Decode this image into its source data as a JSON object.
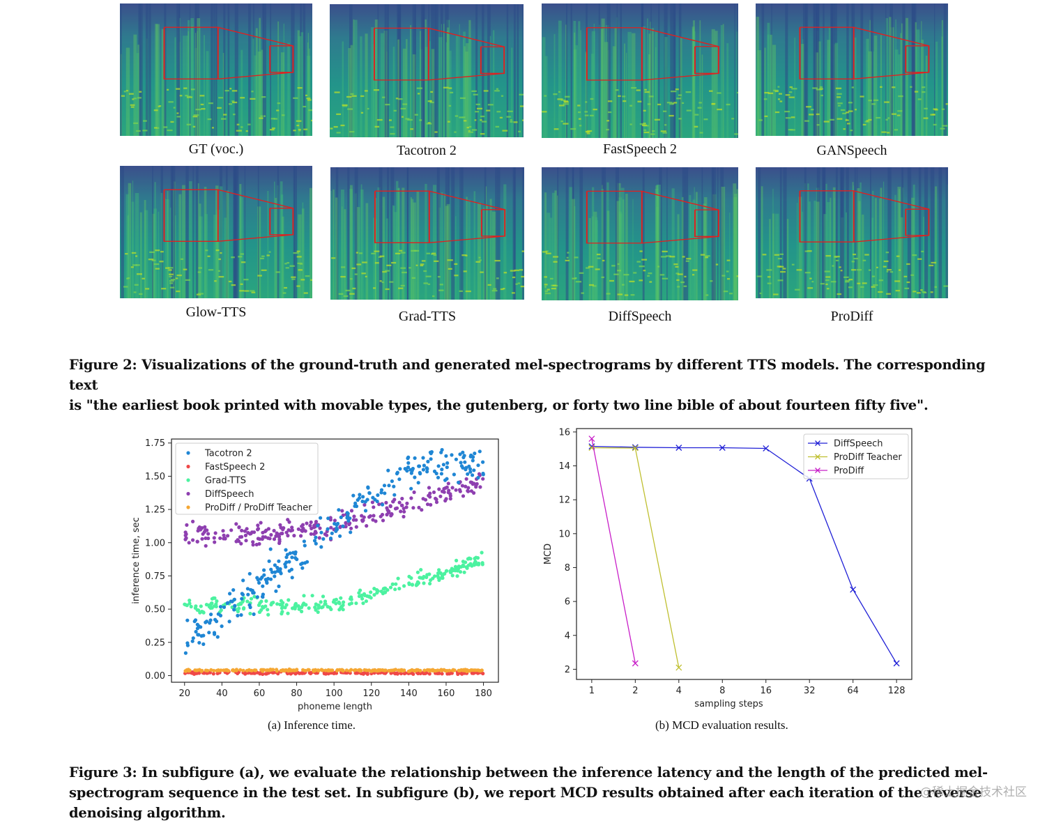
{
  "figure2": {
    "panels": [
      {
        "label": "GT (voc.)"
      },
      {
        "label": "Tacotron 2"
      },
      {
        "label": "FastSpeech 2"
      },
      {
        "label": "GANSpeech"
      },
      {
        "label": "Glow-TTS"
      },
      {
        "label": "Grad-TTS"
      },
      {
        "label": "DiffSpeech"
      },
      {
        "label": "ProDiff"
      }
    ],
    "caption_line1": "Figure 2: Visualizations of the ground-truth and generated mel-spectrograms by different TTS models. The corresponding text",
    "caption_line2": "is \"the earliest book printed with movable types, the gutenberg, or forty two line bible of about fourteen fifty five\"."
  },
  "figure3": {
    "subcaption_a": "(a)  Inference time.",
    "subcaption_b": "(b)  MCD evaluation results.",
    "caption_line1": "Figure 3: In subfigure (a), we evaluate the relationship between the inference latency and the length of the predicted mel-",
    "caption_line2": "spectrogram sequence in the test set. In subfigure (b), we report MCD results obtained after each iteration of the reverse",
    "caption_line3": "denoising algorithm."
  },
  "watermark": "@稀土掘金技术社区",
  "chart_data": [
    {
      "type": "scatter",
      "title": "",
      "xlabel": "phoneme length",
      "ylabel": "inference time, sec",
      "xlim": [
        13,
        188
      ],
      "ylim": [
        -0.05,
        1.78
      ],
      "xticks": [
        20,
        40,
        60,
        80,
        100,
        120,
        140,
        160,
        180
      ],
      "yticks": [
        0.0,
        0.25,
        0.5,
        0.75,
        1.0,
        1.25,
        1.5,
        1.75
      ],
      "ytick_labels": [
        "0.00",
        "0.25",
        "0.50",
        "0.75",
        "1.00",
        "1.25",
        "1.50",
        "1.75"
      ],
      "legend_position": "upper-left",
      "series": [
        {
          "name": "Tacotron 2",
          "color": "#1f86d4",
          "trend": [
            [
              20,
              0.24
            ],
            [
              40,
              0.45
            ],
            [
              60,
              0.68
            ],
            [
              80,
              0.9
            ],
            [
              100,
              1.12
            ],
            [
              120,
              1.35
            ],
            [
              140,
              1.55
            ],
            [
              160,
              1.6
            ],
            [
              180,
              1.58
            ]
          ],
          "spread": 0.07
        },
        {
          "name": "FastSpeech 2",
          "color": "#ef4848",
          "trend": [
            [
              20,
              0.02
            ],
            [
              180,
              0.02
            ]
          ],
          "spread": 0.004
        },
        {
          "name": "Grad-TTS",
          "color": "#4cf2a0",
          "trend": [
            [
              20,
              0.52
            ],
            [
              60,
              0.52
            ],
            [
              100,
              0.53
            ],
            [
              120,
              0.6
            ],
            [
              140,
              0.7
            ],
            [
              160,
              0.78
            ],
            [
              180,
              0.88
            ]
          ],
          "spread": 0.03
        },
        {
          "name": "DiffSpeech",
          "color": "#8e3fb0",
          "trend": [
            [
              20,
              1.06
            ],
            [
              60,
              1.06
            ],
            [
              100,
              1.12
            ],
            [
              120,
              1.22
            ],
            [
              140,
              1.3
            ],
            [
              160,
              1.38
            ],
            [
              180,
              1.45
            ]
          ],
          "spread": 0.04
        },
        {
          "name": "ProDiff / ProDiff Teacher",
          "color": "#f5a733",
          "trend": [
            [
              20,
              0.04
            ],
            [
              180,
              0.04
            ]
          ],
          "spread": 0.003
        }
      ]
    },
    {
      "type": "line",
      "title": "",
      "xlabel": "sampling steps",
      "ylabel": "MCD",
      "x": [
        1,
        2,
        4,
        8,
        16,
        32,
        64,
        128
      ],
      "xtick_labels": [
        "1",
        "2",
        "4",
        "8",
        "16",
        "32",
        "64",
        "128"
      ],
      "xscale": "log2",
      "ylim": [
        1.4,
        16.2
      ],
      "yticks": [
        2,
        4,
        6,
        8,
        10,
        12,
        14,
        16
      ],
      "legend_position": "upper-right",
      "series": [
        {
          "name": "DiffSpeech",
          "color": "#1f1fd6",
          "x": [
            1,
            2,
            4,
            8,
            16,
            32,
            64,
            128
          ],
          "values": [
            15.15,
            15.1,
            15.07,
            15.07,
            15.03,
            13.25,
            6.7,
            2.35
          ]
        },
        {
          "name": "ProDiff Teacher",
          "color": "#bfbf2f",
          "x": [
            1,
            2,
            4
          ],
          "values": [
            15.07,
            15.05,
            2.1
          ]
        },
        {
          "name": "ProDiff",
          "color": "#c81ec8",
          "x": [
            1,
            2
          ],
          "values": [
            15.6,
            2.35
          ]
        }
      ]
    }
  ]
}
